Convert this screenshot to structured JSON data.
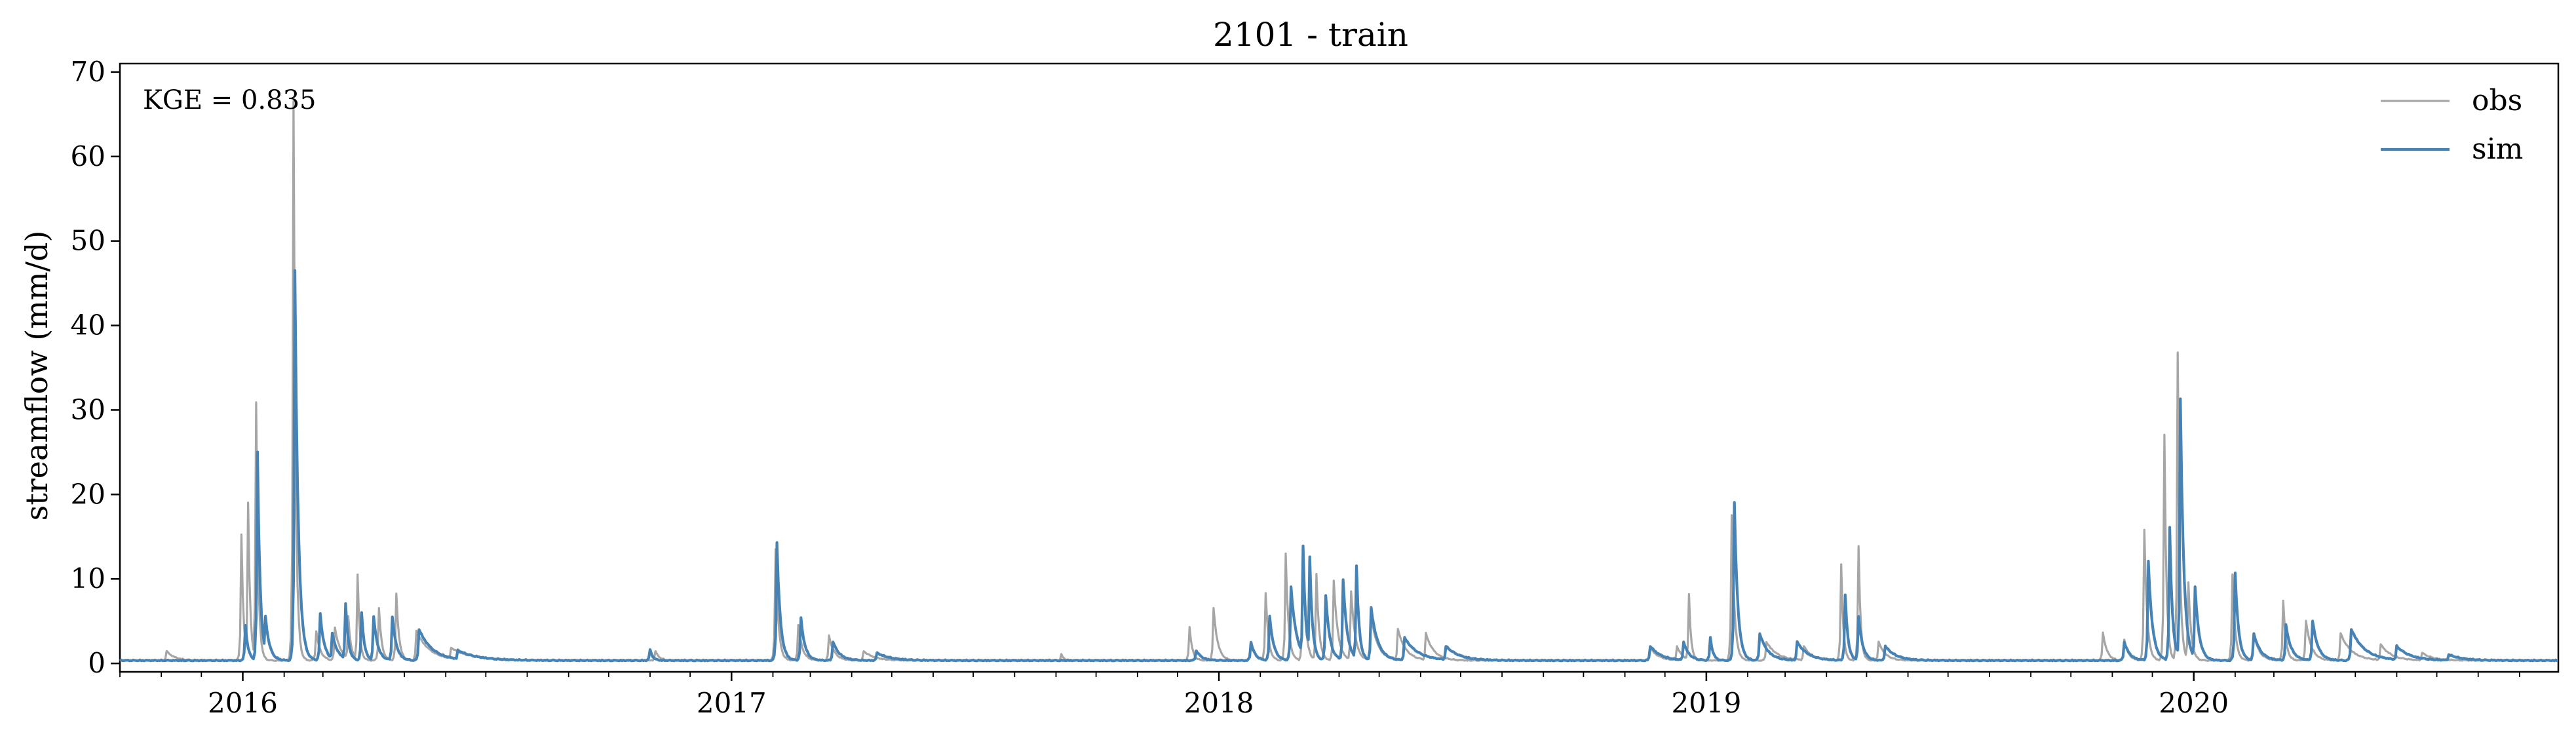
{
  "chart_data": {
    "type": "line",
    "title": "2101 - train",
    "xlabel": "",
    "ylabel": "streamflow (mm/d)",
    "annotation": "KGE = 0.835",
    "legend_position": "top-right",
    "grid": false,
    "xlim": [
      "2015-10-01",
      "2020-09-30"
    ],
    "ylim": [
      -1,
      71
    ],
    "x_ticks": [
      "2016",
      "2017",
      "2018",
      "2019",
      "2020"
    ],
    "y_ticks": [
      0,
      10,
      20,
      30,
      40,
      50,
      60,
      70
    ],
    "base_flow": 0.3,
    "series": [
      {
        "name": "obs",
        "color": "#a6a6a6",
        "peaks": [
          [
            "2015-11-05",
            1.4,
            6
          ],
          [
            "2015-12-31",
            15.2,
            1.5
          ],
          [
            "2016-01-05",
            19,
            1.5
          ],
          [
            "2016-01-11",
            30.8,
            1.5
          ],
          [
            "2016-02-08",
            66.5,
            1.5
          ],
          [
            "2016-02-25",
            3.8,
            3
          ],
          [
            "2016-03-10",
            4.2,
            4
          ],
          [
            "2016-03-20",
            5.5,
            2
          ],
          [
            "2016-03-27",
            10.5,
            1.5
          ],
          [
            "2016-04-12",
            6.5,
            2
          ],
          [
            "2016-04-25",
            8.2,
            2
          ],
          [
            "2016-05-10",
            3.8,
            10
          ],
          [
            "2016-06-05",
            1.8,
            15
          ],
          [
            "2016-11-05",
            1.4,
            3
          ],
          [
            "2017-02-03",
            13.5,
            2
          ],
          [
            "2017-02-20",
            4.5,
            3
          ],
          [
            "2017-03-15",
            3.2,
            4
          ],
          [
            "2017-04-10",
            1.4,
            8
          ],
          [
            "2017-09-05",
            1.0,
            2
          ],
          [
            "2017-12-10",
            4.3,
            2
          ],
          [
            "2017-12-28",
            6.5,
            3
          ],
          [
            "2018-01-25",
            2.0,
            4
          ],
          [
            "2018-02-05",
            8.3,
            2
          ],
          [
            "2018-02-20",
            13.0,
            2
          ],
          [
            "2018-03-05",
            12.5,
            2
          ],
          [
            "2018-03-15",
            10.5,
            2
          ],
          [
            "2018-03-28",
            9.8,
            3
          ],
          [
            "2018-04-10",
            8.5,
            3
          ],
          [
            "2018-04-25",
            5.5,
            5
          ],
          [
            "2018-05-15",
            4.0,
            6
          ],
          [
            "2018-06-05",
            3.5,
            6
          ],
          [
            "2018-11-20",
            1.8,
            6
          ],
          [
            "2018-12-10",
            2.0,
            4
          ],
          [
            "2018-12-19",
            8.1,
            1.5
          ],
          [
            "2019-01-20",
            17.5,
            2
          ],
          [
            "2019-02-15",
            2.5,
            8
          ],
          [
            "2019-03-15",
            2.0,
            6
          ],
          [
            "2019-04-12",
            11.7,
            1.5
          ],
          [
            "2019-04-25",
            13.8,
            1.5
          ],
          [
            "2019-05-10",
            2.5,
            5
          ],
          [
            "2019-10-25",
            3.6,
            3
          ],
          [
            "2019-11-10",
            2.8,
            3
          ],
          [
            "2019-11-25",
            15.8,
            2
          ],
          [
            "2019-12-10",
            27.0,
            1.5
          ],
          [
            "2019-12-20",
            36.8,
            1.5
          ],
          [
            "2019-12-28",
            9.5,
            2
          ],
          [
            "2020-01-30",
            10.5,
            2
          ],
          [
            "2020-02-15",
            3.5,
            4
          ],
          [
            "2020-03-08",
            7.4,
            2
          ],
          [
            "2020-03-25",
            5.0,
            4
          ],
          [
            "2020-04-20",
            3.5,
            8
          ],
          [
            "2020-05-20",
            2.2,
            8
          ],
          [
            "2020-06-20",
            1.2,
            8
          ]
        ]
      },
      {
        "name": "sim",
        "color": "#4682b4",
        "peaks": [
          [
            "2016-01-03",
            4.5,
            2
          ],
          [
            "2016-01-12",
            25.0,
            2
          ],
          [
            "2016-01-18",
            5.5,
            3
          ],
          [
            "2016-02-09",
            46.5,
            2.5
          ],
          [
            "2016-02-28",
            5.8,
            3
          ],
          [
            "2016-03-08",
            3.5,
            4
          ],
          [
            "2016-03-18",
            7.0,
            2
          ],
          [
            "2016-03-30",
            6.0,
            2
          ],
          [
            "2016-04-08",
            5.5,
            3
          ],
          [
            "2016-04-22",
            5.5,
            3
          ],
          [
            "2016-05-12",
            4.0,
            10
          ],
          [
            "2016-06-10",
            1.5,
            15
          ],
          [
            "2016-11-01",
            1.6,
            2
          ],
          [
            "2017-02-04",
            14.3,
            2.5
          ],
          [
            "2017-02-22",
            5.3,
            3
          ],
          [
            "2017-03-18",
            2.5,
            5
          ],
          [
            "2017-04-20",
            1.2,
            10
          ],
          [
            "2017-12-15",
            1.5,
            4
          ],
          [
            "2018-01-25",
            2.5,
            3
          ],
          [
            "2018-02-08",
            5.5,
            3
          ],
          [
            "2018-02-24",
            9.0,
            4
          ],
          [
            "2018-03-05",
            13.8,
            2
          ],
          [
            "2018-03-10",
            12.5,
            2
          ],
          [
            "2018-03-22",
            8.0,
            3
          ],
          [
            "2018-04-04",
            9.8,
            3
          ],
          [
            "2018-04-14",
            11.5,
            2
          ],
          [
            "2018-04-25",
            6.5,
            5
          ],
          [
            "2018-05-20",
            3.0,
            10
          ],
          [
            "2018-06-20",
            2.0,
            10
          ],
          [
            "2018-11-20",
            2.0,
            8
          ],
          [
            "2018-12-15",
            2.5,
            4
          ],
          [
            "2019-01-04",
            3.0,
            2
          ],
          [
            "2019-01-22",
            19.0,
            2.5
          ],
          [
            "2019-02-10",
            3.5,
            6
          ],
          [
            "2019-03-10",
            2.5,
            8
          ],
          [
            "2019-04-15",
            8.0,
            2
          ],
          [
            "2019-04-25",
            5.5,
            3
          ],
          [
            "2019-05-15",
            2.0,
            8
          ],
          [
            "2019-11-10",
            2.5,
            4
          ],
          [
            "2019-11-28",
            12.0,
            3
          ],
          [
            "2019-12-14",
            16.0,
            2
          ],
          [
            "2019-12-22",
            31.3,
            2.5
          ],
          [
            "2020-01-02",
            9.0,
            3
          ],
          [
            "2020-02-01",
            10.7,
            2.5
          ],
          [
            "2020-02-15",
            3.5,
            5
          ],
          [
            "2020-03-10",
            4.5,
            4
          ],
          [
            "2020-03-30",
            5.0,
            4
          ],
          [
            "2020-04-28",
            4.0,
            10
          ],
          [
            "2020-06-01",
            2.0,
            10
          ],
          [
            "2020-07-10",
            1.0,
            10
          ]
        ]
      }
    ]
  }
}
